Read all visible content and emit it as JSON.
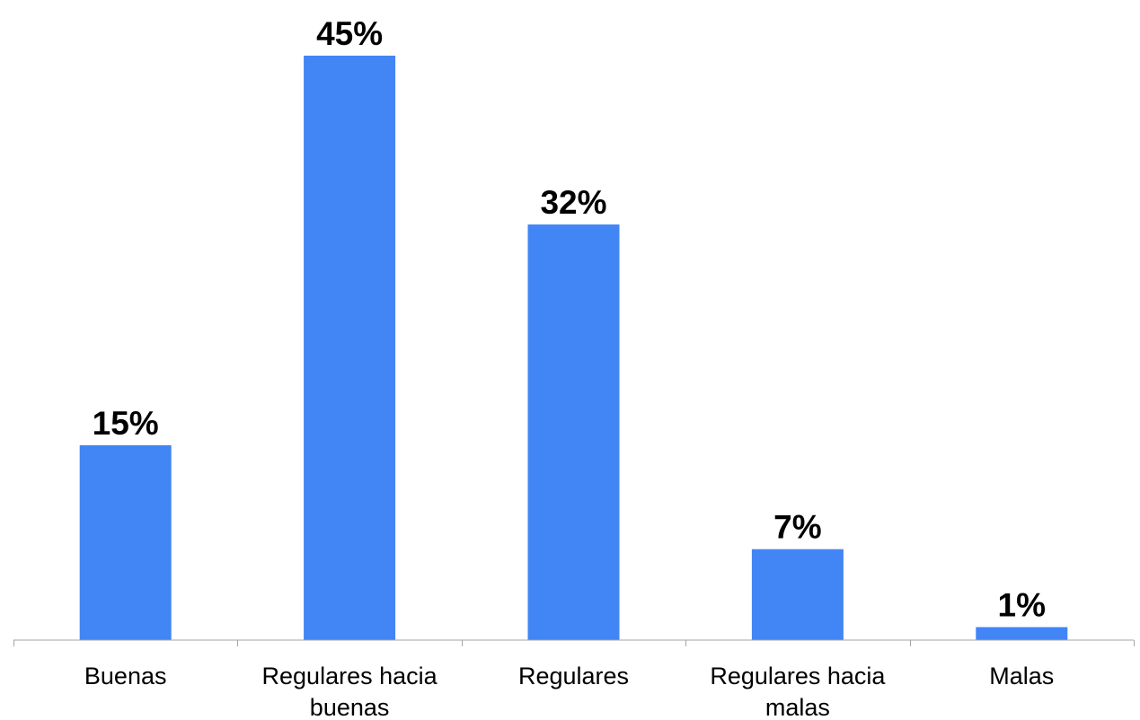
{
  "chart_data": {
    "type": "bar",
    "categories": [
      [
        "Buenas"
      ],
      [
        "Regulares hacia",
        "buenas"
      ],
      [
        "Regulares"
      ],
      [
        "Regulares hacia",
        "malas"
      ],
      [
        "Malas"
      ]
    ],
    "values": [
      15,
      45,
      32,
      7,
      1
    ],
    "data_labels": [
      "15%",
      "45%",
      "32%",
      "7%",
      "1%"
    ],
    "unit": "%",
    "bar_color": "#4285f4",
    "title": "",
    "xlabel": "",
    "ylabel": "",
    "ylim": [
      0,
      45
    ],
    "grid": false,
    "legend": "none"
  }
}
